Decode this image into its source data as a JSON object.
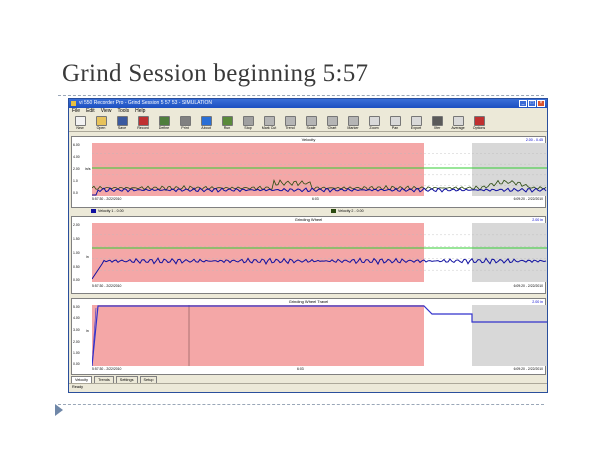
{
  "slide": {
    "title": "Grind Session beginning 5:57"
  },
  "window": {
    "title": "vi 550 Recorder Pro - Grind Session 5 57 53 - SIMULATION",
    "controls": [
      "_",
      "□",
      "×"
    ]
  },
  "menu": [
    "File",
    "Edit",
    "View",
    "Tools",
    "Help"
  ],
  "toolbar": [
    {
      "label": "New",
      "icon": "new-file-icon",
      "color": "#f2f2f2"
    },
    {
      "label": "Open",
      "icon": "folder-open-icon",
      "color": "#e8c35a"
    },
    {
      "label": "Save",
      "icon": "save-disk-icon",
      "color": "#3b5aa0"
    },
    {
      "label": "Record",
      "icon": "record-icon",
      "color": "#c03030"
    },
    {
      "label": "Define",
      "icon": "define-icon",
      "color": "#4f7e3c"
    },
    {
      "label": "Print",
      "icon": "print-icon",
      "color": "#808080"
    },
    {
      "label": "About",
      "icon": "about-icon",
      "color": "#2a6fd6"
    },
    {
      "label": "Run",
      "icon": "run-icon",
      "color": "#5a8a3a"
    },
    {
      "label": "Stop",
      "icon": "stop-icon",
      "color": "#a0a0a0"
    },
    {
      "label": "Mark Cut",
      "icon": "mark-cut-icon",
      "color": "#b5b5b5"
    },
    {
      "label": "Trend",
      "icon": "trend-icon",
      "color": "#b5b5b5"
    },
    {
      "label": "Scale",
      "icon": "scale-icon",
      "color": "#b5b5b5"
    },
    {
      "label": "Chart",
      "icon": "chart-icon",
      "color": "#b5b5b5"
    },
    {
      "label": "Marker",
      "icon": "marker-icon",
      "color": "#b5b5b5"
    },
    {
      "label": "Zoom",
      "icon": "zoom-icon",
      "color": "#d9d9d9"
    },
    {
      "label": "Pan",
      "icon": "pan-icon",
      "color": "#d9d9d9"
    },
    {
      "label": "Export",
      "icon": "export-icon",
      "color": "#d9d9d9"
    },
    {
      "label": "Xfer",
      "icon": "transfer-icon",
      "color": "#5a5a5a"
    },
    {
      "label": "Average",
      "icon": "average-icon",
      "color": "#d9d9d9"
    },
    {
      "label": "Options",
      "icon": "options-icon",
      "color": "#c03030"
    }
  ],
  "colors": {
    "series_primary": "#1010a0",
    "series_secondary": "#2a4a10",
    "limit_line": "#33cc33",
    "event_band": "#f4a7a7",
    "shaded_band": "#d8d8d8",
    "setpoint_line": "#3232cc"
  },
  "charts": [
    {
      "title": "Velocity",
      "readout": "2.00 - 0.45",
      "yticks": [
        "6.00",
        "4.00",
        "2.00",
        "1.0",
        "0.0"
      ],
      "ylabel": "in/s",
      "start_stamp": "5:57:30 - 2/22/2010",
      "end_stamp": "6:09:20 - 2/22/2010",
      "mid_stamp": "6:03"
    },
    {
      "title": "Grinding Wheel",
      "readout": "2.00 in",
      "yticks": [
        "2.00",
        "1.50",
        "1.00",
        "0.50",
        "0.00"
      ],
      "ylabel": "in",
      "start_stamp": "5:57:30 - 2/22/2010",
      "end_stamp": "6:09:20 - 2/22/2010",
      "mid_stamp": ""
    },
    {
      "title": "Grinding Wheel Travel",
      "readout": "2.00 in",
      "yticks": [
        "5.00",
        "4.00",
        "3.00",
        "2.00",
        "1.00",
        "0.00"
      ],
      "ylabel": "in",
      "start_stamp": "5:57:30 - 2/22/2010",
      "end_stamp": "6:09:20 - 2/22/2010",
      "mid_stamp": "6:03"
    }
  ],
  "legend": [
    {
      "label": "Velocity 1 - 0.00",
      "color": "#1010a0"
    },
    {
      "label": "Velocity 2 - 0.00",
      "color": "#2a4a10"
    }
  ],
  "tabs": [
    "Velocity",
    "Trends",
    "Settings",
    "Setup"
  ],
  "status": {
    "text": "Ready"
  }
}
